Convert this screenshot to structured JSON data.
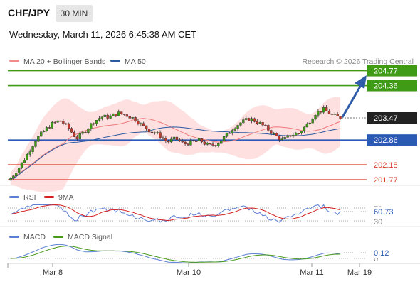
{
  "header": {
    "symbol": "CHF/JPY",
    "timeframe": "30 MIN",
    "datetime": "Wednesday, March 11, 2026 6:45:38 AM CET"
  },
  "colors": {
    "resistance": "#3f9a16",
    "pivot": "#2a5ab3",
    "support": "#d93a2b",
    "bull_candle": "#3f9a16",
    "bear_candle": "#c0392b",
    "bollinger_fill": "#fdd5d7",
    "ma20": "#f07a7a",
    "ma50": "#2c5aa0",
    "rsi": "#5b7fd4",
    "rsi_ma": "#d42020",
    "macd": "#5b7fd4",
    "macd_signal": "#4a9a1a",
    "arrow": "#2e5ca8"
  },
  "price_panel": {
    "legend": [
      {
        "label": "MA 20 + Bollinger Bands",
        "color": "#f08c8c"
      },
      {
        "label": "MA 50",
        "color": "#2c5aa0"
      }
    ],
    "source": "Research © 2026 Trading Central",
    "last_price": "203.47",
    "levels": [
      {
        "label": "204.77",
        "value": 204.77,
        "kind": "resistance"
      },
      {
        "label": "204.36",
        "value": 204.36,
        "kind": "resistance"
      },
      {
        "label": "202.86",
        "value": 202.86,
        "kind": "pivot"
      },
      {
        "label": "202.18",
        "value": 202.18,
        "kind": "support"
      },
      {
        "label": "201.77",
        "value": 201.77,
        "kind": "support"
      }
    ]
  },
  "rsi_panel": {
    "legend": [
      {
        "label": "RSI",
        "color": "#5b7fd4"
      },
      {
        "label": "9MA",
        "color": "#d42020"
      }
    ],
    "levels": [
      "70",
      "30"
    ],
    "value": "60.73"
  },
  "macd_panel": {
    "legend": [
      {
        "label": "MACD",
        "color": "#5b7fd4"
      },
      {
        "label": "MACD Signal",
        "color": "#4a9a1a"
      }
    ],
    "zero": "0",
    "value": "0.12"
  },
  "x_axis": {
    "ticks": [
      "Mar 8",
      "Mar 10",
      "Mar 11",
      "Mar 19"
    ]
  },
  "chart_data": {
    "type": "candlestick",
    "series": [
      {
        "name": "CHF/JPY",
        "close": [
          201.8,
          202.1,
          202.45,
          202.85,
          203.1,
          203.3,
          203.4,
          203.2,
          202.9,
          203.1,
          203.35,
          203.5,
          203.5,
          203.6,
          203.55,
          203.45,
          203.25,
          203.1,
          203.0,
          202.8,
          202.9,
          202.75,
          202.8,
          202.85,
          202.7,
          202.75,
          202.95,
          203.2,
          203.35,
          203.45,
          203.35,
          203.2,
          203.0,
          202.85,
          203.0,
          203.05,
          203.3,
          203.6,
          203.7,
          203.55,
          203.47
        ]
      },
      {
        "name": "MA 20"
      },
      {
        "name": "MA 50"
      }
    ],
    "y_levels": [
      204.77,
      204.36,
      203.47,
      202.86,
      202.18,
      201.77
    ],
    "x_ticks": [
      "Mar 8",
      "Mar 10",
      "Mar 11",
      "Mar 19"
    ],
    "rsi": {
      "value": 60.73,
      "levels": [
        70,
        30
      ]
    },
    "macd": {
      "value": 0.12,
      "zero": 0
    }
  }
}
